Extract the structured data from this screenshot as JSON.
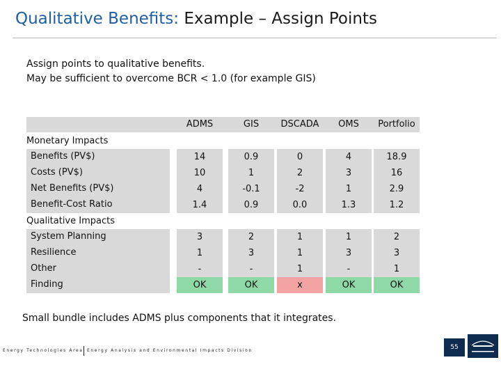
{
  "title": {
    "accent": "Qualitative Benefits:",
    "rest": " Example – Assign Points"
  },
  "intro": {
    "line1": "Assign points to qualitative benefits.",
    "line2": "May be sufficient to overcome BCR < 1.0 (for example GIS)"
  },
  "table": {
    "columns": [
      "ADMS",
      "GIS",
      "DSCADA",
      "OMS",
      "Portfolio"
    ],
    "sections": [
      "Monetary Impacts",
      "Qualitative Impacts"
    ],
    "monetary_rows": [
      {
        "label": "Benefits (PV$)",
        "values": [
          "14",
          "0.9",
          "0",
          "4",
          "18.9"
        ]
      },
      {
        "label": "Costs (PV$)",
        "values": [
          "10",
          "1",
          "2",
          "3",
          "16"
        ]
      },
      {
        "label": "Net Benefits (PV$)",
        "values": [
          "4",
          "-0.1",
          "-2",
          "1",
          "2.9"
        ]
      },
      {
        "label": "Benefit-Cost Ratio",
        "values": [
          "1.4",
          "0.9",
          "0.0",
          "1.3",
          "1.2"
        ]
      }
    ],
    "qualitative_rows": [
      {
        "label": "System Planning",
        "values": [
          "3",
          "2",
          "1",
          "1",
          "2"
        ]
      },
      {
        "label": "Resilience",
        "values": [
          "1",
          "3",
          "1",
          "3",
          "3"
        ]
      },
      {
        "label": "Other",
        "values": [
          "-",
          "-",
          "1",
          "-",
          "1"
        ]
      },
      {
        "label": "Finding",
        "values": [
          "OK",
          "OK",
          "x",
          "OK",
          "OK"
        ]
      }
    ],
    "colors": {
      "band": "#d9d9d9",
      "ok": "#8fd9a8",
      "fail": "#f4a3a3"
    }
  },
  "closing": "Small bundle includes ADMS plus components that it integrates.",
  "footer": {
    "org": "Energy Technologies Area",
    "division": "Energy Analysis and Environmental Impacts Division",
    "page": "55"
  }
}
